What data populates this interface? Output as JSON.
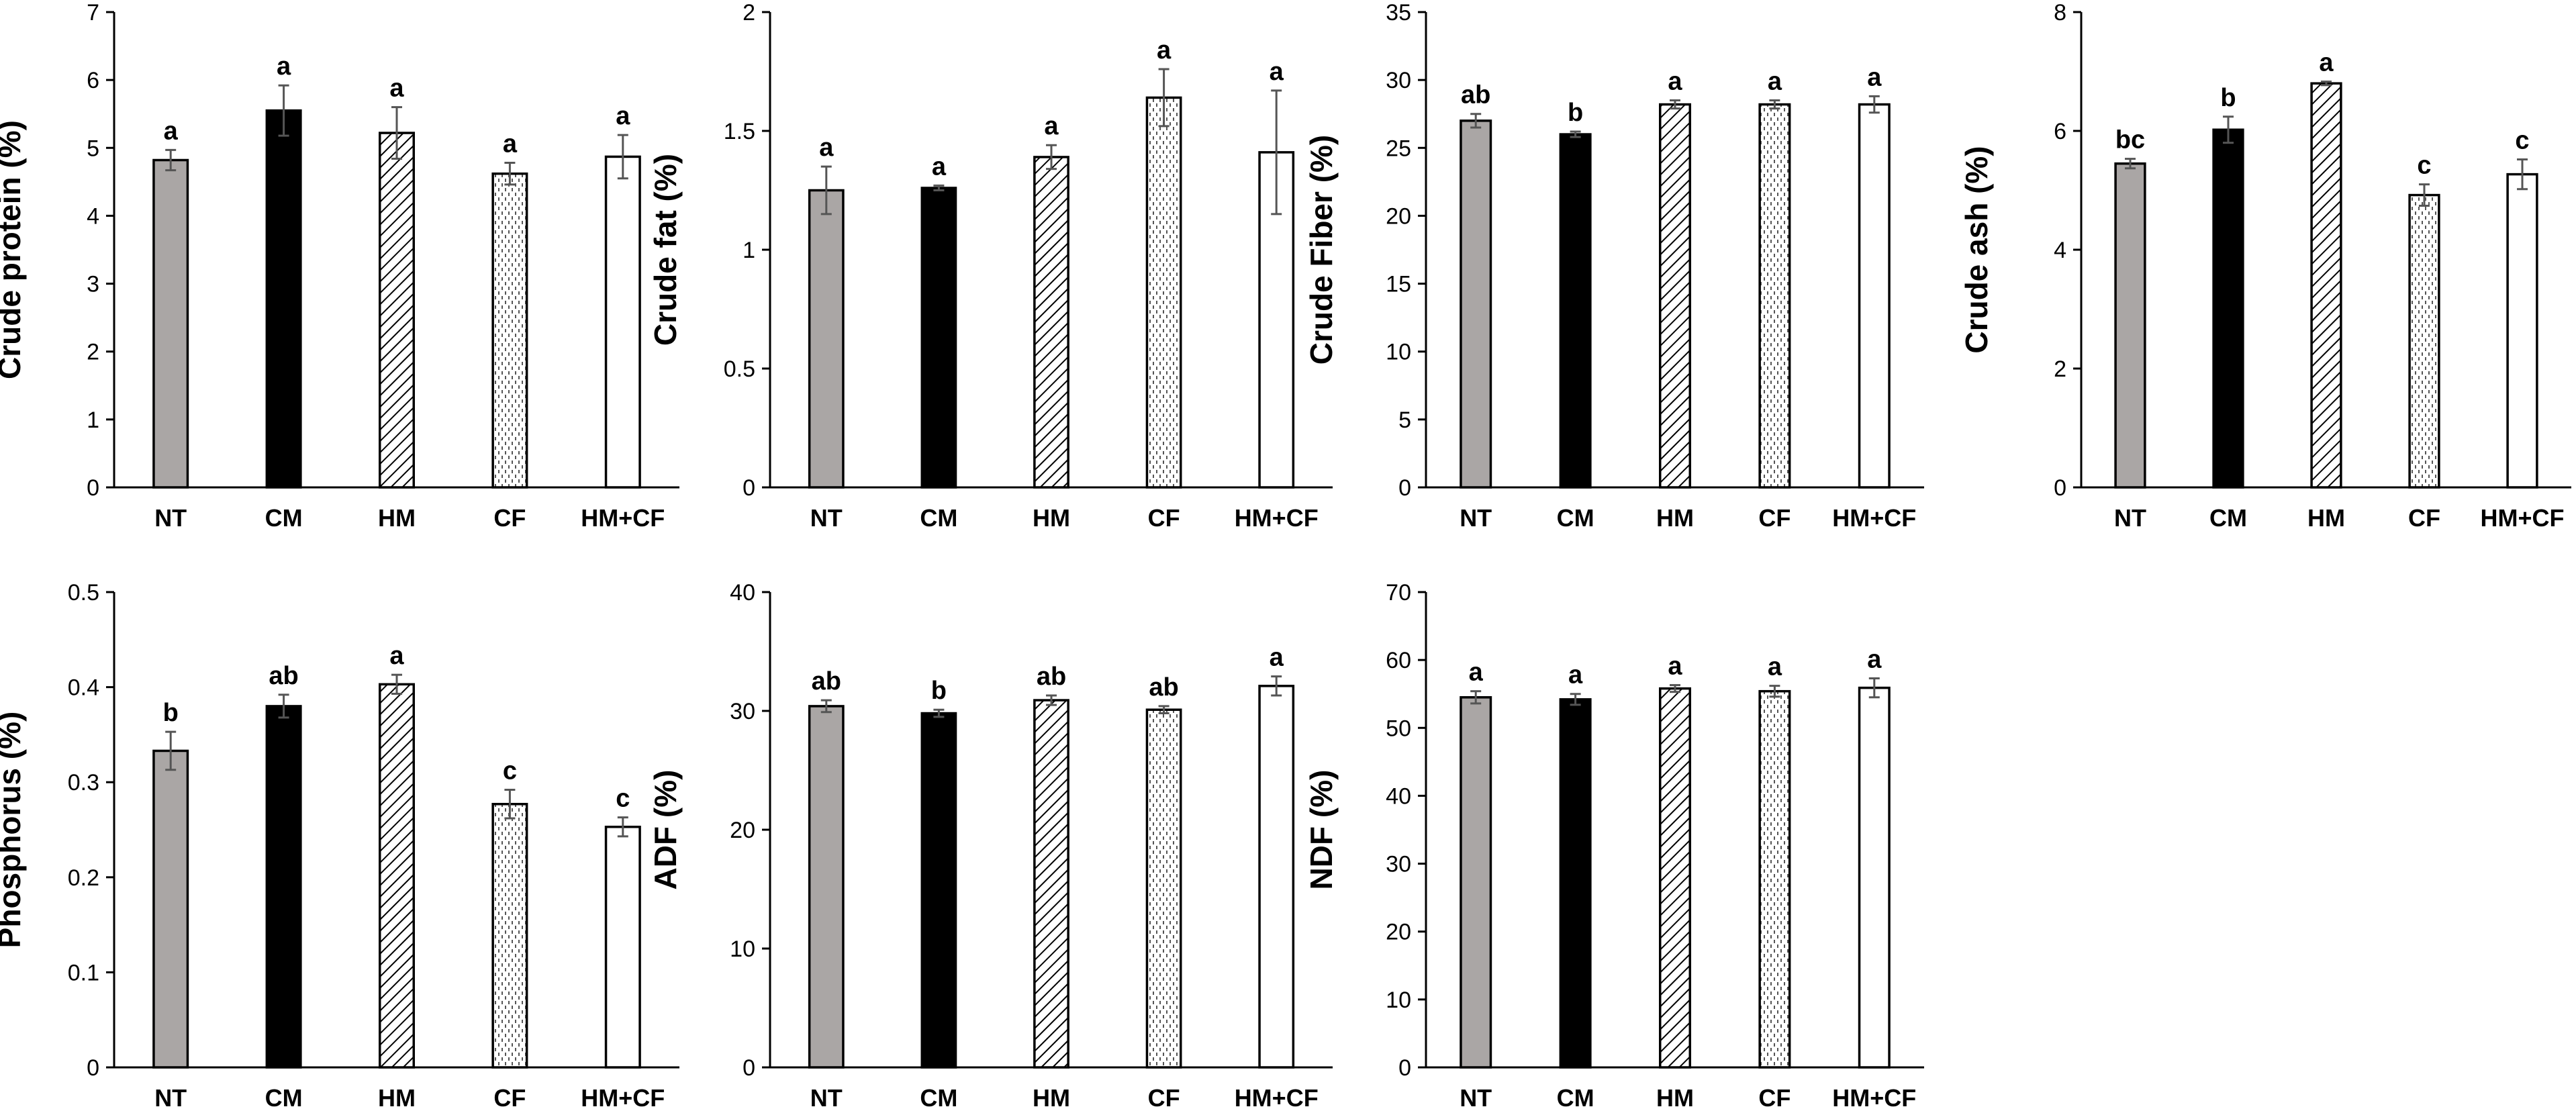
{
  "chart_data": [
    {
      "type": "bar",
      "ylabel": "Crude protein (%)",
      "categories": [
        "NT",
        "CM",
        "HM",
        "CF",
        "HM+CF"
      ],
      "values": [
        4.82,
        5.55,
        5.22,
        4.62,
        4.87
      ],
      "errors": [
        0.15,
        0.37,
        0.38,
        0.16,
        0.32
      ],
      "letters": [
        "a",
        "a",
        "a",
        "a",
        "a"
      ],
      "ylim": [
        0,
        7
      ],
      "yticks": [
        0,
        1,
        2,
        3,
        4,
        5,
        6,
        7
      ],
      "ytick_labels": [
        "0",
        "1",
        "2",
        "3",
        "4",
        "5",
        "6",
        "7"
      ]
    },
    {
      "type": "bar",
      "ylabel": "Crude fat (%)",
      "categories": [
        "NT",
        "CM",
        "HM",
        "CF",
        "HM+CF"
      ],
      "values": [
        1.25,
        1.26,
        1.39,
        1.64,
        1.41
      ],
      "errors": [
        0.1,
        0.01,
        0.05,
        0.12,
        0.26
      ],
      "letters": [
        "a",
        "a",
        "a",
        "a",
        "a"
      ],
      "ylim": [
        0,
        2
      ],
      "yticks": [
        0,
        0.5,
        1,
        1.5,
        2
      ],
      "ytick_labels": [
        "0",
        "0.5",
        "1",
        "1.5",
        "2"
      ]
    },
    {
      "type": "bar",
      "ylabel": "Crude Fiber (%)",
      "categories": [
        "NT",
        "CM",
        "HM",
        "CF",
        "HM+CF"
      ],
      "values": [
        27.0,
        26.0,
        28.2,
        28.2,
        28.2
      ],
      "errors": [
        0.5,
        0.2,
        0.3,
        0.3,
        0.6
      ],
      "letters": [
        "ab",
        "b",
        "a",
        "a",
        "a"
      ],
      "ylim": [
        0,
        35
      ],
      "yticks": [
        0,
        5,
        10,
        15,
        20,
        25,
        30,
        35
      ],
      "ytick_labels": [
        "0",
        "5",
        "10",
        "15",
        "20",
        "25",
        "30",
        "35"
      ]
    },
    {
      "type": "bar",
      "ylabel": "Crude ash (%)",
      "categories": [
        "NT",
        "CM",
        "HM",
        "CF",
        "HM+CF"
      ],
      "values": [
        5.45,
        6.02,
        6.8,
        4.92,
        5.27
      ],
      "errors": [
        0.08,
        0.22,
        0.03,
        0.18,
        0.25
      ],
      "letters": [
        "bc",
        "b",
        "a",
        "c",
        "c"
      ],
      "ylim": [
        0,
        8
      ],
      "yticks": [
        0,
        2,
        4,
        6,
        8
      ],
      "ytick_labels": [
        "0",
        "2",
        "4",
        "6",
        "8"
      ]
    },
    {
      "type": "bar",
      "ylabel": "Phosphorus (%)",
      "categories": [
        "NT",
        "CM",
        "HM",
        "CF",
        "HM+CF"
      ],
      "values": [
        0.333,
        0.38,
        0.403,
        0.277,
        0.253
      ],
      "errors": [
        0.02,
        0.012,
        0.01,
        0.015,
        0.01
      ],
      "letters": [
        "b",
        "ab",
        "a",
        "c",
        "c"
      ],
      "ylim": [
        0,
        0.5
      ],
      "yticks": [
        0,
        0.1,
        0.2,
        0.3,
        0.4,
        0.5
      ],
      "ytick_labels": [
        "0",
        "0.1",
        "0.2",
        "0.3",
        "0.4",
        "0.5"
      ]
    },
    {
      "type": "bar",
      "ylabel": "ADF (%)",
      "categories": [
        "NT",
        "CM",
        "HM",
        "CF",
        "HM+CF"
      ],
      "values": [
        30.4,
        29.8,
        30.9,
        30.1,
        32.1
      ],
      "errors": [
        0.5,
        0.3,
        0.4,
        0.3,
        0.8
      ],
      "letters": [
        "ab",
        "b",
        "ab",
        "ab",
        "a"
      ],
      "ylim": [
        0,
        40
      ],
      "yticks": [
        0,
        10,
        20,
        30,
        40
      ],
      "ytick_labels": [
        "0",
        "10",
        "20",
        "30",
        "40"
      ]
    },
    {
      "type": "bar",
      "ylabel": "NDF (%)",
      "categories": [
        "NT",
        "CM",
        "HM",
        "CF",
        "HM+CF"
      ],
      "values": [
        54.5,
        54.2,
        55.8,
        55.4,
        55.9
      ],
      "errors": [
        0.9,
        0.8,
        0.5,
        0.8,
        1.4
      ],
      "letters": [
        "a",
        "a",
        "a",
        "a",
        "a"
      ],
      "ylim": [
        0,
        70
      ],
      "yticks": [
        0,
        10,
        20,
        30,
        40,
        50,
        60,
        70
      ],
      "ytick_labels": [
        "0",
        "10",
        "20",
        "30",
        "40",
        "50",
        "60",
        "70"
      ]
    }
  ],
  "styles": {
    "NT": "#aaa6a5",
    "CM": "#000000",
    "HM": "hatch",
    "CF": "dots",
    "HM+CF": "#ffffff"
  }
}
